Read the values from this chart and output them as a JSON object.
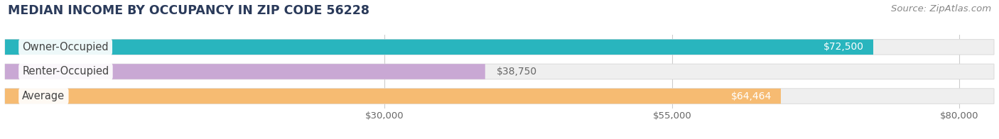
{
  "title": "MEDIAN INCOME BY OCCUPANCY IN ZIP CODE 56228",
  "source": "Source: ZipAtlas.com",
  "categories": [
    "Owner-Occupied",
    "Renter-Occupied",
    "Average"
  ],
  "values": [
    72500,
    38750,
    64464
  ],
  "colors": [
    "#29b5be",
    "#c9a8d4",
    "#f6bb72"
  ],
  "bar_bg_color": "#efefef",
  "bar_border_color": "#dddddd",
  "value_labels": [
    "$72,500",
    "$38,750",
    "$64,464"
  ],
  "xlim_min": -3000,
  "xlim_max": 83000,
  "xticks": [
    30000,
    55000,
    80000
  ],
  "xticklabels": [
    "$30,000",
    "$55,000",
    "$80,000"
  ],
  "title_fontsize": 12.5,
  "source_fontsize": 9.5,
  "label_fontsize": 10.5,
  "value_fontsize": 10,
  "bar_height": 0.62,
  "background_color": "#ffffff",
  "title_color": "#2a3a5a",
  "source_color": "#888888",
  "grid_color": "#cccccc",
  "label_text_color": "#444444",
  "value_label_color_inside": "#ffffff",
  "value_label_color_outside": "#666666"
}
